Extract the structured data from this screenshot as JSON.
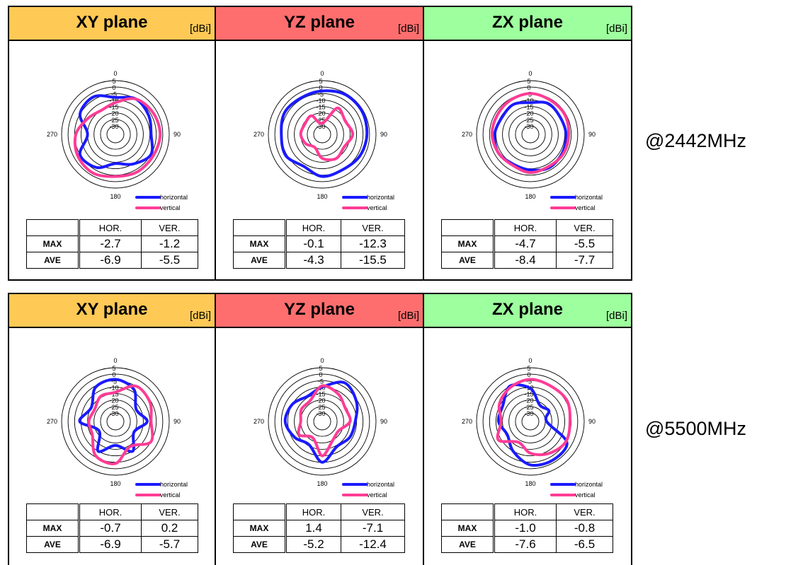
{
  "colors": {
    "horizontal": "#1a1aff",
    "vertical": "#ff3c96",
    "xy": "#ffc955",
    "yz": "#ff6e6e",
    "zx": "#9dff9d"
  },
  "unit": "[dBi]",
  "legend": {
    "horizontal": "horizontal",
    "vertical": "vertical"
  },
  "table_headers": {
    "hor": "HOR.",
    "ver": "VER.",
    "max": "MAX",
    "ave": "AVE"
  },
  "angle_labels": [
    "0",
    "90",
    "180",
    "270"
  ],
  "ring_labels": [
    "5",
    "0",
    "-5",
    "-10",
    "-15",
    "-20",
    "-25",
    "-30"
  ],
  "rows": [
    {
      "frequency": "@2442MHz",
      "panels": [
        {
          "plane": "XY plane",
          "color_key": "xy",
          "max_hor": "-2.7",
          "max_ver": "-1.2",
          "ave_hor": "-6.9",
          "ave_ver": "-5.5"
        },
        {
          "plane": "YZ plane",
          "color_key": "yz",
          "max_hor": "-0.1",
          "max_ver": "-12.3",
          "ave_hor": "-4.3",
          "ave_ver": "-15.5"
        },
        {
          "plane": "ZX plane",
          "color_key": "zx",
          "max_hor": "-4.7",
          "max_ver": "-5.5",
          "ave_hor": "-8.4",
          "ave_ver": "-7.7"
        }
      ]
    },
    {
      "frequency": "@5500MHz",
      "panels": [
        {
          "plane": "XY plane",
          "color_key": "xy",
          "max_hor": "-0.7",
          "max_ver": "0.2",
          "ave_hor": "-6.9",
          "ave_ver": "-5.7"
        },
        {
          "plane": "YZ plane",
          "color_key": "yz",
          "max_hor": "1.4",
          "max_ver": "-7.1",
          "ave_hor": "-5.2",
          "ave_ver": "-12.4"
        },
        {
          "plane": "ZX plane",
          "color_key": "zx",
          "max_hor": "-1.0",
          "max_ver": "-0.8",
          "ave_hor": "-7.6",
          "ave_ver": "-6.5"
        }
      ]
    }
  ],
  "chart_data": [
    {
      "type": "polar",
      "plane": "XY plane",
      "frequency": "@2442MHz",
      "rlim": [
        -30,
        5
      ],
      "series": [
        {
          "name": "horizontal",
          "angles_deg": [
            0,
            30,
            60,
            90,
            120,
            150,
            180,
            210,
            240,
            270,
            300,
            330
          ],
          "values_dbi": [
            -8,
            -5,
            -7,
            -9,
            -5,
            -10,
            -14,
            -7,
            -5,
            -15,
            -5,
            -3
          ]
        },
        {
          "name": "vertical",
          "angles_deg": [
            0,
            30,
            60,
            90,
            120,
            150,
            180,
            210,
            240,
            270,
            300,
            330
          ],
          "values_dbi": [
            -12,
            -5,
            -3,
            -2,
            -3,
            -3,
            -4,
            -2,
            -3,
            -6,
            -12,
            -15
          ]
        }
      ]
    },
    {
      "type": "polar",
      "plane": "YZ plane",
      "frequency": "@2442MHz",
      "rlim": [
        -30,
        5
      ],
      "series": [
        {
          "name": "horizontal",
          "angles_deg": [
            0,
            30,
            60,
            90,
            120,
            150,
            180,
            210,
            240,
            270,
            300,
            330
          ],
          "values_dbi": [
            -3,
            -1,
            -1,
            -2,
            -3,
            -5,
            -4,
            -8,
            -4,
            -5,
            -3,
            -4
          ]
        },
        {
          "name": "vertical",
          "angles_deg": [
            0,
            30,
            60,
            90,
            120,
            150,
            180,
            210,
            240,
            270,
            300,
            330
          ],
          "values_dbi": [
            -28,
            -13,
            -16,
            -13,
            -17,
            -15,
            -18,
            -25,
            -22,
            -20,
            -21,
            -20
          ]
        }
      ]
    },
    {
      "type": "polar",
      "plane": "ZX plane",
      "frequency": "@2442MHz",
      "rlim": [
        -30,
        5
      ],
      "series": [
        {
          "name": "horizontal",
          "angles_deg": [
            0,
            30,
            60,
            90,
            120,
            150,
            180,
            210,
            240,
            270,
            300,
            330
          ],
          "values_dbi": [
            -12,
            -9,
            -10,
            -9,
            -8,
            -7,
            -9,
            -10,
            -8,
            -9,
            -11,
            -10
          ]
        },
        {
          "name": "vertical",
          "angles_deg": [
            0,
            30,
            60,
            90,
            120,
            150,
            180,
            210,
            240,
            270,
            300,
            330
          ],
          "values_dbi": [
            -5,
            -6,
            -6,
            -7,
            -7,
            -8,
            -7,
            -9,
            -8,
            -7,
            -7,
            -6
          ]
        }
      ]
    },
    {
      "type": "polar",
      "plane": "XY plane",
      "frequency": "@5500MHz",
      "rlim": [
        -30,
        5
      ],
      "series": [
        {
          "name": "horizontal",
          "angles_deg": [
            0,
            30,
            60,
            90,
            120,
            150,
            180,
            210,
            240,
            270,
            300,
            330
          ],
          "values_dbi": [
            -4,
            -8,
            -18,
            -12,
            -20,
            -10,
            -18,
            -10,
            -22,
            -9,
            -15,
            -6
          ]
        },
        {
          "name": "vertical",
          "angles_deg": [
            0,
            30,
            60,
            90,
            120,
            150,
            180,
            210,
            240,
            270,
            300,
            330
          ],
          "values_dbi": [
            -14,
            -5,
            -6,
            -9,
            -5,
            -14,
            -4,
            -6,
            -16,
            -16,
            -18,
            -14
          ]
        }
      ]
    },
    {
      "type": "polar",
      "plane": "YZ plane",
      "frequency": "@5500MHz",
      "rlim": [
        -30,
        5
      ],
      "series": [
        {
          "name": "horizontal",
          "angles_deg": [
            0,
            30,
            60,
            90,
            120,
            150,
            180,
            210,
            240,
            270,
            300,
            330
          ],
          "values_dbi": [
            -10,
            -2,
            -6,
            -11,
            -12,
            -14,
            -5,
            -16,
            -12,
            -8,
            -10,
            -14
          ]
        },
        {
          "name": "vertical",
          "angles_deg": [
            0,
            30,
            60,
            90,
            120,
            150,
            180,
            210,
            240,
            270,
            300,
            330
          ],
          "values_dbi": [
            -9,
            -12,
            -16,
            -15,
            -22,
            -20,
            -10,
            -22,
            -16,
            -20,
            -18,
            -18
          ]
        }
      ]
    },
    {
      "type": "polar",
      "plane": "ZX plane",
      "frequency": "@5500MHz",
      "rlim": [
        -30,
        5
      ],
      "series": [
        {
          "name": "horizontal",
          "angles_deg": [
            0,
            30,
            60,
            90,
            120,
            150,
            180,
            210,
            240,
            270,
            300,
            330
          ],
          "values_dbi": [
            -11,
            -22,
            -20,
            -24,
            -4,
            -2,
            -3,
            -10,
            -16,
            -12,
            -12,
            -5
          ]
        },
        {
          "name": "vertical",
          "angles_deg": [
            0,
            30,
            60,
            90,
            120,
            150,
            180,
            210,
            240,
            270,
            300,
            330
          ],
          "values_dbi": [
            -4,
            -5,
            -4,
            -6,
            -5,
            -8,
            -12,
            -18,
            -8,
            -14,
            -9,
            -6
          ]
        }
      ]
    }
  ]
}
